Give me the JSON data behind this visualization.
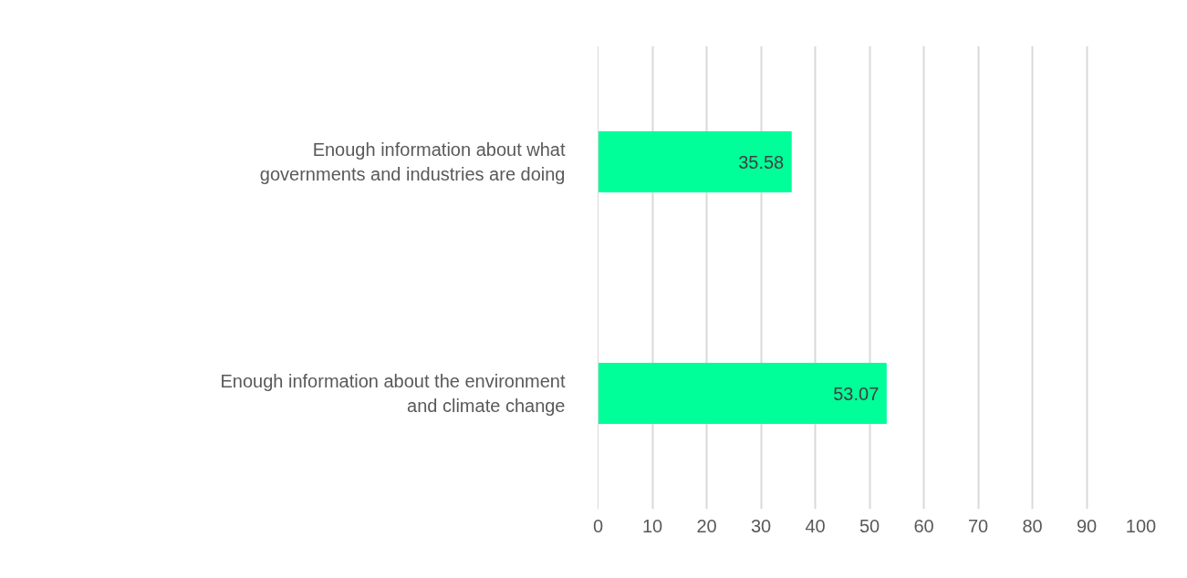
{
  "chart_data": {
    "type": "bar",
    "orientation": "horizontal",
    "categories": [
      "Enough information about what governments and industries are doing",
      "Enough information about the environment and climate change"
    ],
    "values": [
      35.58,
      53.07
    ],
    "color": "#00ff99",
    "xlim": [
      0,
      100
    ],
    "xticks": [
      0,
      10,
      20,
      30,
      40,
      50,
      60,
      70,
      80,
      90,
      100
    ],
    "grid": "x",
    "data_labels": true
  }
}
